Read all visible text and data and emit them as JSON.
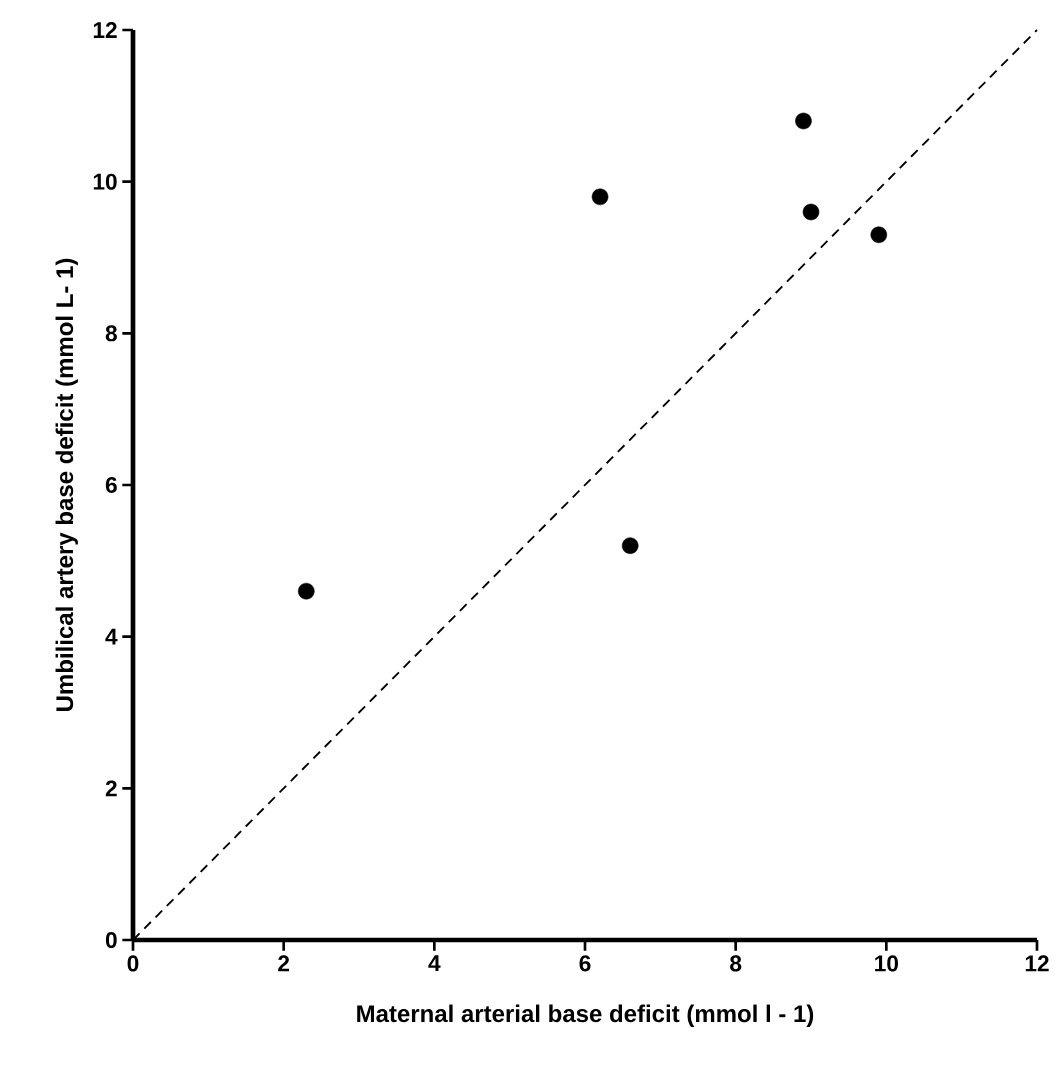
{
  "chart_data": {
    "type": "scatter",
    "xlabel": "Maternal arterial base deficit (mmol l - 1)",
    "ylabel": "Umbilical artery base deficit (mmol L- 1)",
    "xlim": [
      0,
      12
    ],
    "ylim": [
      0,
      12
    ],
    "xticks": [
      0,
      2,
      4,
      6,
      8,
      10,
      12
    ],
    "yticks": [
      0,
      2,
      4,
      6,
      8,
      10,
      12
    ],
    "grid": false,
    "marker": "circle",
    "series": [
      {
        "color": "#000000",
        "x": [
          2.3,
          6.2,
          6.6,
          8.9,
          9.0,
          9.9
        ],
        "values": [
          4.6,
          9.8,
          5.2,
          10.8,
          9.6,
          9.3
        ]
      },
      {
        "type": "line",
        "color": "#000000",
        "marker": "none",
        "line_style": "dashed",
        "x": [
          0,
          12
        ],
        "values": [
          0,
          12
        ]
      }
    ]
  }
}
